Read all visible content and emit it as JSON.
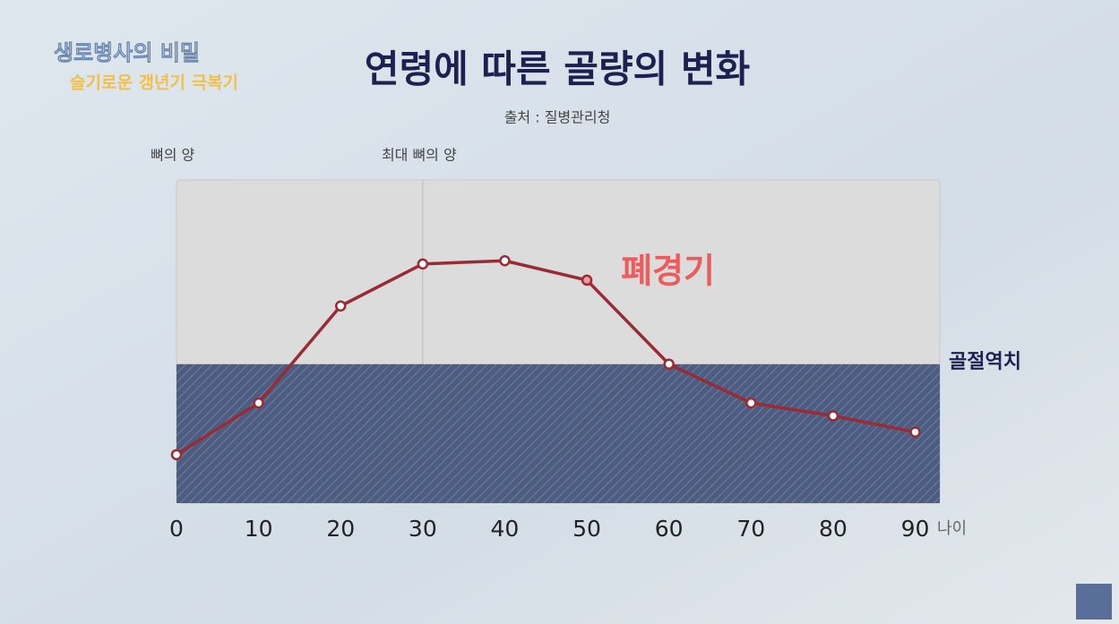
{
  "program": {
    "title": "생로병사의 비밀",
    "episode": "슬기로운 갱년기 극복기"
  },
  "chart_data": {
    "type": "line",
    "title": "연령에 따른 골량의 변화",
    "subtitle": "출처 : 질병관리청",
    "y_label": "뼈의 양",
    "x_label": "나이",
    "x": [
      0,
      10,
      20,
      30,
      40,
      50,
      60,
      70,
      80,
      90
    ],
    "values": [
      15,
      31,
      61,
      74,
      75,
      69,
      43,
      31,
      27,
      22
    ],
    "xlim": [
      0,
      93
    ],
    "xticks": [
      0,
      10,
      20,
      30,
      40,
      50,
      60,
      70,
      80,
      90
    ],
    "ylim": [
      0,
      100
    ],
    "color": "#9a2a33",
    "peak": {
      "x": 30,
      "label": "최대 뼈의 양"
    },
    "menopause": {
      "x": 50,
      "label": "폐경기"
    },
    "threshold": {
      "value": 43,
      "label": "골절역치"
    }
  }
}
